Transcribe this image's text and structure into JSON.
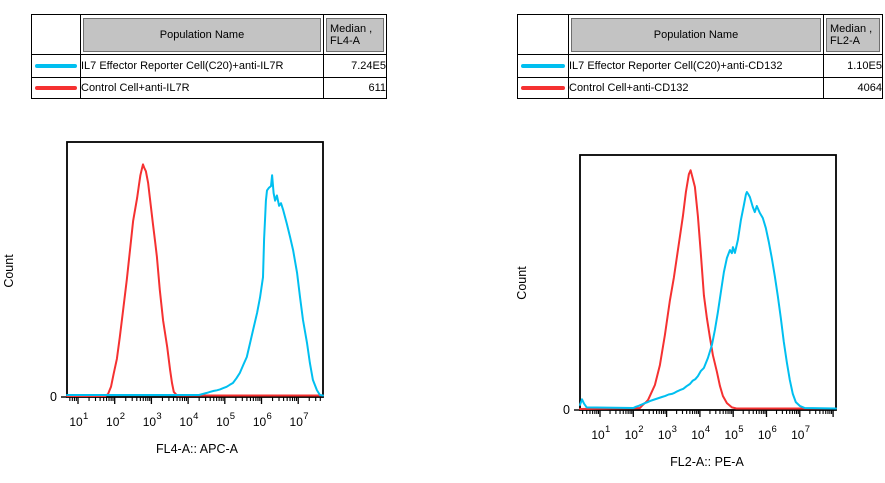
{
  "colors": {
    "cyan_series": "#00BFF0",
    "red_series": "#F53131",
    "header_bg": "#C3C3C3",
    "header_border": "#6F6F6F",
    "table_border": "#000000",
    "background": "#FFFFFF"
  },
  "left_panel": {
    "table": {
      "population_header": "Population Name",
      "median_header_line1": "Median ,",
      "median_header_line2": "FL4-A",
      "rows": [
        {
          "population": "IL7 Effector Reporter Cell(C20)+anti-IL7R",
          "median": "7.24E5",
          "swatch_color": "#00BFF0"
        },
        {
          "population": "Control Cell+anti-IL7R",
          "median": "611",
          "swatch_color": "#F53131"
        }
      ]
    },
    "chart_data": {
      "type": "line",
      "subtype": "flow-cytometry-histogram-overlay",
      "xlabel": "FL4-A:: APC-A",
      "ylabel": "Count",
      "x_scale": "log10",
      "x_tick_base": "10",
      "x_tick_exponents": [
        1,
        2,
        3,
        4,
        5,
        6,
        7
      ],
      "y_tick_labels": [
        "0"
      ],
      "x_range_log": [
        0.7,
        7.676
      ],
      "grid": false,
      "legend": false,
      "series": [
        {
          "name": "Control Cell+anti-IL7R",
          "color": "#F53131",
          "median": "611",
          "points": [
            [
              0.7,
              0.004
            ],
            [
              1.75,
              0.004
            ],
            [
              1.82,
              0.012
            ],
            [
              1.9,
              0.04
            ],
            [
              1.97,
              0.09
            ],
            [
              2.06,
              0.15
            ],
            [
              2.14,
              0.235
            ],
            [
              2.23,
              0.34
            ],
            [
              2.33,
              0.46
            ],
            [
              2.42,
              0.58
            ],
            [
              2.5,
              0.69
            ],
            [
              2.61,
              0.78
            ],
            [
              2.66,
              0.83
            ],
            [
              2.7,
              0.87
            ],
            [
              2.74,
              0.895
            ],
            [
              2.77,
              0.912
            ],
            [
              2.8,
              0.9
            ],
            [
              2.85,
              0.885
            ],
            [
              2.91,
              0.84
            ],
            [
              2.96,
              0.78
            ],
            [
              3.04,
              0.68
            ],
            [
              3.1,
              0.61
            ],
            [
              3.15,
              0.55
            ],
            [
              3.23,
              0.42
            ],
            [
              3.32,
              0.3
            ],
            [
              3.43,
              0.196
            ],
            [
              3.51,
              0.106
            ],
            [
              3.56,
              0.055
            ],
            [
              3.61,
              0.02
            ],
            [
              3.7,
              0.006
            ],
            [
              7.676,
              0.006
            ]
          ]
        },
        {
          "name": "IL7 Effector Reporter Cell(C20)+anti-IL7R",
          "color": "#00BFF0",
          "median": "7.24E5",
          "points": [
            [
              0.7,
              0.008
            ],
            [
              4.3,
              0.008
            ],
            [
              4.51,
              0.016
            ],
            [
              4.7,
              0.024
            ],
            [
              4.87,
              0.03
            ],
            [
              5.05,
              0.04
            ],
            [
              5.22,
              0.055
            ],
            [
              5.41,
              0.094
            ],
            [
              5.6,
              0.157
            ],
            [
              5.69,
              0.212
            ],
            [
              5.77,
              0.263
            ],
            [
              5.88,
              0.33
            ],
            [
              5.96,
              0.39
            ],
            [
              6.04,
              0.47
            ],
            [
              6.07,
              0.62
            ],
            [
              6.1,
              0.71
            ],
            [
              6.12,
              0.77
            ],
            [
              6.15,
              0.81
            ],
            [
              6.2,
              0.82
            ],
            [
              6.26,
              0.827
            ],
            [
              6.29,
              0.87
            ],
            [
              6.33,
              0.8
            ],
            [
              6.37,
              0.77
            ],
            [
              6.42,
              0.79
            ],
            [
              6.48,
              0.75
            ],
            [
              6.53,
              0.76
            ],
            [
              6.59,
              0.733
            ],
            [
              6.69,
              0.68
            ],
            [
              6.78,
              0.627
            ],
            [
              6.86,
              0.576
            ],
            [
              6.97,
              0.486
            ],
            [
              7.05,
              0.392
            ],
            [
              7.13,
              0.302
            ],
            [
              7.24,
              0.212
            ],
            [
              7.32,
              0.133
            ],
            [
              7.4,
              0.067
            ],
            [
              7.51,
              0.027
            ],
            [
              7.59,
              0.008
            ],
            [
              7.676,
              0.006
            ]
          ]
        }
      ]
    }
  },
  "right_panel": {
    "table": {
      "population_header": "Population Name",
      "median_header_line1": "Median ,",
      "median_header_line2": "FL2-A",
      "rows": [
        {
          "population": "IL7 Effector Reporter Cell(C20)+anti-CD132",
          "median": "1.10E5",
          "swatch_color": "#00BFF0"
        },
        {
          "population": "Control Cell+anti-CD132",
          "median": "4064",
          "swatch_color": "#F53131"
        }
      ]
    },
    "chart_data": {
      "type": "line",
      "subtype": "flow-cytometry-histogram-overlay",
      "xlabel": "FL2-A:: PE-A",
      "ylabel": "Count",
      "x_scale": "log10",
      "x_tick_base": "10",
      "x_tick_exponents": [
        1,
        2,
        3,
        4,
        5,
        6,
        7
      ],
      "y_tick_labels": [
        "0"
      ],
      "x_range_log": [
        0.4,
        8.086
      ],
      "grid": false,
      "legend": false,
      "series": [
        {
          "name": "Control Cell+anti-CD132",
          "color": "#F53131",
          "median": "4064",
          "points": [
            [
              0.4,
              0.004
            ],
            [
              2.2,
              0.008
            ],
            [
              2.44,
              0.039
            ],
            [
              2.65,
              0.098
            ],
            [
              2.8,
              0.176
            ],
            [
              2.95,
              0.294
            ],
            [
              3.1,
              0.43
            ],
            [
              3.22,
              0.52
            ],
            [
              3.31,
              0.6
            ],
            [
              3.4,
              0.68
            ],
            [
              3.49,
              0.76
            ],
            [
              3.58,
              0.855
            ],
            [
              3.67,
              0.925
            ],
            [
              3.72,
              0.94
            ],
            [
              3.78,
              0.91
            ],
            [
              3.85,
              0.875
            ],
            [
              3.94,
              0.76
            ],
            [
              4.03,
              0.61
            ],
            [
              4.12,
              0.45
            ],
            [
              4.21,
              0.36
            ],
            [
              4.3,
              0.285
            ],
            [
              4.39,
              0.215
            ],
            [
              4.51,
              0.15
            ],
            [
              4.6,
              0.095
            ],
            [
              4.69,
              0.055
            ],
            [
              4.81,
              0.027
            ],
            [
              4.96,
              0.01
            ],
            [
              5.1,
              0.006
            ],
            [
              8.086,
              0.006
            ]
          ]
        },
        {
          "name": "IL7 Effector Reporter Cell(C20)+anti-CD132",
          "color": "#00BFF0",
          "median": "1.10E5",
          "points": [
            [
              0.4,
              0.02
            ],
            [
              0.46,
              0.042
            ],
            [
              0.52,
              0.025
            ],
            [
              0.6,
              0.01
            ],
            [
              2.0,
              0.008
            ],
            [
              2.5,
              0.035
            ],
            [
              2.86,
              0.051
            ],
            [
              3.16,
              0.063
            ],
            [
              3.4,
              0.078
            ],
            [
              3.7,
              0.102
            ],
            [
              3.94,
              0.133
            ],
            [
              4.12,
              0.165
            ],
            [
              4.24,
              0.204
            ],
            [
              4.36,
              0.255
            ],
            [
              4.45,
              0.314
            ],
            [
              4.54,
              0.384
            ],
            [
              4.63,
              0.463
            ],
            [
              4.72,
              0.541
            ],
            [
              4.81,
              0.596
            ],
            [
              4.9,
              0.627
            ],
            [
              4.96,
              0.615
            ],
            [
              4.99,
              0.639
            ],
            [
              5.05,
              0.616
            ],
            [
              5.14,
              0.667
            ],
            [
              5.23,
              0.745
            ],
            [
              5.32,
              0.804
            ],
            [
              5.38,
              0.845
            ],
            [
              5.41,
              0.855
            ],
            [
              5.46,
              0.845
            ],
            [
              5.5,
              0.835
            ],
            [
              5.59,
              0.796
            ],
            [
              5.65,
              0.776
            ],
            [
              5.71,
              0.8
            ],
            [
              5.8,
              0.773
            ],
            [
              5.89,
              0.753
            ],
            [
              5.98,
              0.714
            ],
            [
              6.07,
              0.659
            ],
            [
              6.16,
              0.596
            ],
            [
              6.25,
              0.525
            ],
            [
              6.34,
              0.447
            ],
            [
              6.43,
              0.361
            ],
            [
              6.52,
              0.267
            ],
            [
              6.61,
              0.188
            ],
            [
              6.7,
              0.118
            ],
            [
              6.79,
              0.063
            ],
            [
              6.88,
              0.031
            ],
            [
              7.0,
              0.016
            ],
            [
              7.15,
              0.008
            ],
            [
              8.086,
              0.006
            ]
          ]
        }
      ]
    }
  }
}
